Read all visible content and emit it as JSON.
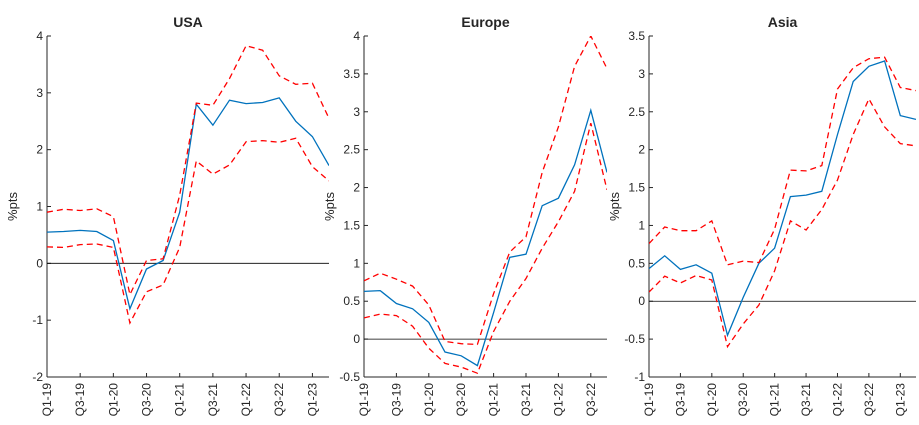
{
  "chart_data": [
    {
      "type": "line",
      "title": "USA",
      "xlabel": "",
      "ylabel": "%pts",
      "ylim": [
        -2,
        4
      ],
      "yticks": [
        -2,
        -1,
        0,
        1,
        2,
        3,
        4
      ],
      "ytick_labels": [
        "-2",
        "-1",
        "0",
        "1",
        "2",
        "3",
        "4"
      ],
      "x": [
        "Q1-19",
        "Q2-19",
        "Q3-19",
        "Q4-19",
        "Q1-20",
        "Q2-20",
        "Q3-20",
        "Q4-20",
        "Q1-21",
        "Q2-21",
        "Q3-21",
        "Q4-21",
        "Q1-22",
        "Q2-22",
        "Q3-22",
        "Q4-22",
        "Q1-23",
        "Q2-23"
      ],
      "xtick_labels": [
        "Q1-19",
        "Q3-19",
        "Q1-20",
        "Q3-20",
        "Q1-21",
        "Q3-21",
        "Q1-22",
        "Q3-22",
        "Q1-23"
      ],
      "reference_line": 0,
      "colors": {
        "estimate": "#0072BD",
        "band": "#FF0000",
        "zero": "#000000"
      },
      "series": [
        {
          "role": "estimate",
          "values": [
            0.55,
            0.56,
            0.58,
            0.56,
            0.4,
            -0.8,
            -0.1,
            0.05,
            0.9,
            2.8,
            2.43,
            2.87,
            2.81,
            2.83,
            2.91,
            2.5,
            2.23,
            1.72
          ]
        },
        {
          "role": "upper",
          "values": [
            0.9,
            0.95,
            0.93,
            0.96,
            0.82,
            -0.55,
            0.05,
            0.08,
            1.2,
            2.82,
            2.78,
            3.25,
            3.83,
            3.75,
            3.3,
            3.15,
            3.17,
            2.55
          ]
        },
        {
          "role": "lower",
          "values": [
            0.29,
            0.28,
            0.33,
            0.34,
            0.28,
            -1.05,
            -0.5,
            -0.38,
            0.28,
            1.8,
            1.57,
            1.73,
            2.14,
            2.16,
            2.13,
            2.2,
            1.7,
            1.45
          ]
        }
      ]
    },
    {
      "type": "line",
      "title": "Europe",
      "xlabel": "",
      "ylabel": "%pts",
      "ylim": [
        -0.5,
        4
      ],
      "yticks": [
        -0.5,
        0,
        0.5,
        1,
        1.5,
        2,
        2.5,
        3,
        3.5,
        4
      ],
      "ytick_labels": [
        "-0.5",
        "0",
        "0.5",
        "1",
        "1.5",
        "2",
        "2.5",
        "3",
        "3.5",
        "4"
      ],
      "x": [
        "Q1-19",
        "Q2-19",
        "Q3-19",
        "Q4-19",
        "Q1-20",
        "Q2-20",
        "Q3-20",
        "Q4-20",
        "Q1-21",
        "Q2-21",
        "Q3-21",
        "Q4-21",
        "Q1-22",
        "Q2-22",
        "Q3-22",
        "Q4-22"
      ],
      "xtick_labels": [
        "Q1-19",
        "Q3-19",
        "Q1-20",
        "Q3-20",
        "Q1-21",
        "Q3-21",
        "Q1-22",
        "Q3-22"
      ],
      "reference_line": 0,
      "colors": {
        "estimate": "#0072BD",
        "band": "#FF0000",
        "zero": "#000000"
      },
      "series": [
        {
          "role": "estimate",
          "values": [
            0.63,
            0.64,
            0.47,
            0.4,
            0.22,
            -0.17,
            -0.22,
            -0.35,
            0.35,
            1.08,
            1.12,
            1.76,
            1.86,
            2.3,
            3.02,
            2.2
          ]
        },
        {
          "role": "upper",
          "values": [
            0.77,
            0.87,
            0.79,
            0.7,
            0.45,
            -0.03,
            -0.06,
            -0.07,
            0.6,
            1.15,
            1.35,
            2.2,
            2.8,
            3.6,
            4.0,
            3.57
          ]
        },
        {
          "role": "lower",
          "values": [
            0.28,
            0.33,
            0.31,
            0.17,
            -0.12,
            -0.32,
            -0.37,
            -0.45,
            0.1,
            0.5,
            0.8,
            1.2,
            1.55,
            1.95,
            2.85,
            1.97
          ]
        }
      ]
    },
    {
      "type": "line",
      "title": "Asia",
      "xlabel": "",
      "ylabel": "%pts",
      "ylim": [
        -1,
        3.5
      ],
      "yticks": [
        -1,
        -0.5,
        0,
        0.5,
        1,
        1.5,
        2,
        2.5,
        3,
        3.5
      ],
      "ytick_labels": [
        "-1",
        "-0.5",
        "0",
        "0.5",
        "1",
        "1.5",
        "2",
        "2.5",
        "3",
        "3.5"
      ],
      "x": [
        "Q1-19",
        "Q2-19",
        "Q3-19",
        "Q4-19",
        "Q1-20",
        "Q2-20",
        "Q3-20",
        "Q4-20",
        "Q1-21",
        "Q2-21",
        "Q3-21",
        "Q4-21",
        "Q1-22",
        "Q2-22",
        "Q3-22",
        "Q4-22",
        "Q1-23",
        "Q2-23"
      ],
      "xtick_labels": [
        "Q1-19",
        "Q3-19",
        "Q1-20",
        "Q3-20",
        "Q1-21",
        "Q3-21",
        "Q1-22",
        "Q3-22",
        "Q1-23"
      ],
      "reference_line": 0,
      "colors": {
        "estimate": "#0072BD",
        "band": "#FF0000",
        "zero": "#000000"
      },
      "series": [
        {
          "role": "estimate",
          "values": [
            0.43,
            0.6,
            0.42,
            0.48,
            0.37,
            -0.45,
            0.05,
            0.5,
            0.7,
            1.38,
            1.4,
            1.45,
            2.2,
            2.9,
            3.1,
            3.17,
            2.45,
            2.4
          ]
        },
        {
          "role": "upper",
          "values": [
            0.76,
            0.98,
            0.93,
            0.93,
            1.06,
            0.48,
            0.53,
            0.51,
            0.95,
            1.73,
            1.72,
            1.79,
            2.8,
            3.08,
            3.2,
            3.22,
            2.82,
            2.78
          ]
        },
        {
          "role": "lower",
          "values": [
            0.12,
            0.33,
            0.24,
            0.34,
            0.28,
            -0.6,
            -0.3,
            -0.05,
            0.4,
            1.06,
            0.94,
            1.21,
            1.6,
            2.2,
            2.67,
            2.3,
            2.08,
            2.05
          ]
        }
      ]
    }
  ]
}
